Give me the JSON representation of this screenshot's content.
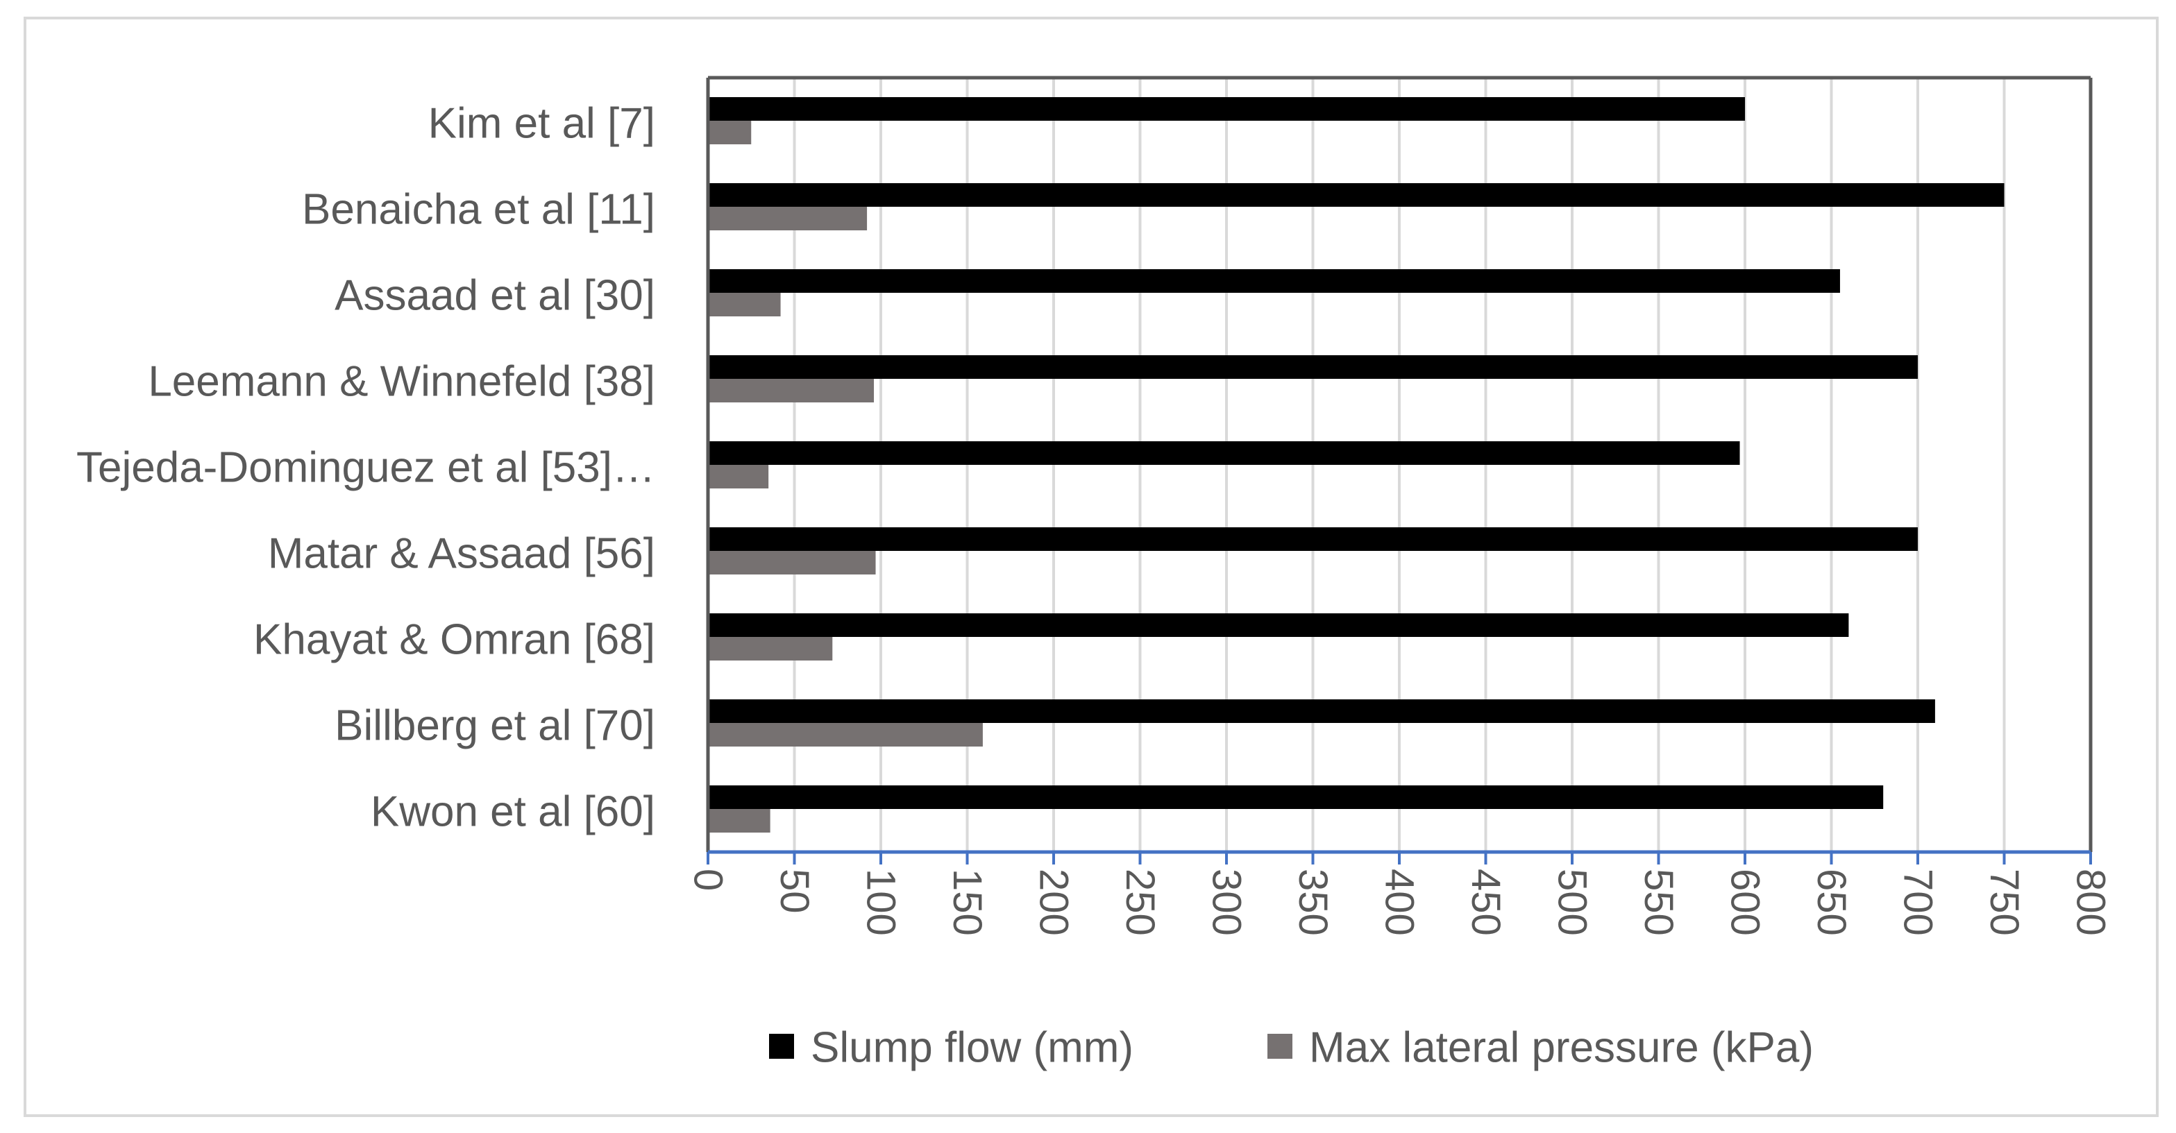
{
  "chart_data": {
    "type": "bar",
    "orientation": "horizontal",
    "categories": [
      "Kim et al [7]",
      "Benaicha et al [11]",
      "Assaad et al [30]",
      "Leemann & Winnefeld [38]",
      "Tejeda-Dominguez et al [53]…",
      "Matar & Assaad [56]",
      "Khayat & Omran [68]",
      "Billberg et al [70]",
      "Kwon et al [60]"
    ],
    "series": [
      {
        "name": "Slump flow (mm)",
        "color": "#000000",
        "values": [
          600,
          750,
          655,
          700,
          597,
          700,
          660,
          710,
          680
        ]
      },
      {
        "name": "Max lateral pressure (kPa)",
        "color": "#767171",
        "values": [
          25,
          92,
          42,
          96,
          35,
          97,
          72,
          159,
          36
        ]
      }
    ],
    "xlim": [
      0,
      800
    ],
    "x_ticks": [
      "0",
      "50",
      "100",
      "150",
      "200",
      "250",
      "300",
      "350",
      "400",
      "450",
      "500",
      "550",
      "600",
      "650",
      "700",
      "750",
      "800"
    ],
    "grid": "vertical",
    "legend": "bottom",
    "title": "",
    "xlabel": "",
    "ylabel": ""
  }
}
